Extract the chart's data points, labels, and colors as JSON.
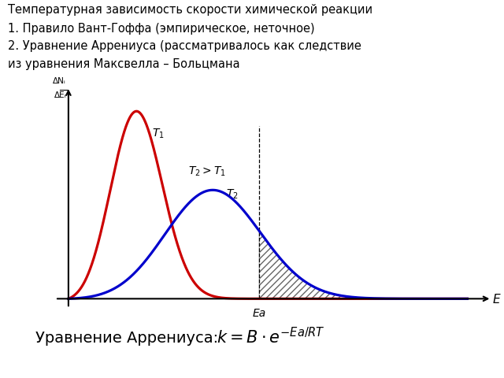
{
  "title_line1": "Температурная зависимость скорости химической реакции",
  "title_line2": "1. Правило Вант-Гоффа (эмпирическое, неточное)",
  "title_line3": "2. Уравнение Аррениуса (рассматривалось как следствие",
  "title_line4": "из уравнения Максвелла – Больцмана",
  "ylabel_num": "ΔNᵢ",
  "ylabel_den": "ΔEᵢ",
  "xlabel": "E",
  "ea_label": "Ea",
  "t1_label": "$T_1$",
  "t2_label": "$T_2$",
  "t2_gt_t1_label": "$T_2>T_1$",
  "bottom_label": "Уравнение Аррениуса:  ",
  "red_color": "#cc0000",
  "blue_color": "#0000cc",
  "hatch_color": "#666666",
  "bg_color": "#ffffff",
  "mu1": 1.5,
  "sigma1": 0.6,
  "mu2": 3.2,
  "sigma2": 1.1,
  "scale2_rel": 0.58,
  "Ea": 4.3,
  "xmax": 9.0
}
